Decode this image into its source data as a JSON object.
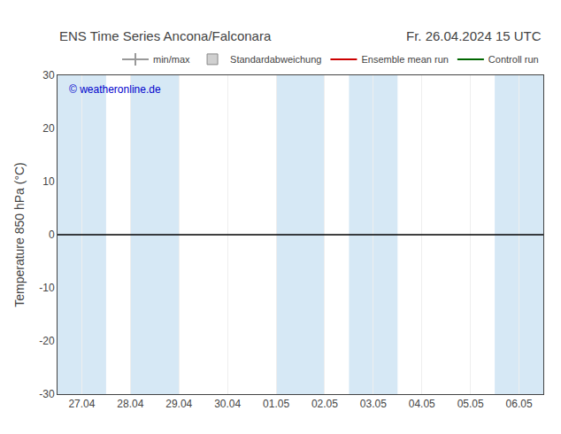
{
  "chart_data": {
    "type": "line",
    "title": "ENS Time Series Ancona/Falconara",
    "subtitle": "Fr. 26.04.2024 15 UTC",
    "y_label": "Temperature 850 hPa (°C)",
    "categories": [
      "27.04",
      "28.04",
      "29.04",
      "30.04",
      "01.05",
      "02.05",
      "03.05",
      "04.05",
      "05.05",
      "06.05"
    ],
    "xlim": [
      -0.5,
      9.5
    ],
    "ylim": [
      -30,
      30
    ],
    "yticks": [
      -30,
      -20,
      -10,
      0,
      10,
      20,
      30
    ],
    "grid": "x",
    "zero_line": 0,
    "shaded_bands": {
      "color": "#d6e8f5",
      "ranges": [
        [
          -0.5,
          0.5
        ],
        [
          1.0,
          2.0
        ],
        [
          4.0,
          5.0
        ],
        [
          5.5,
          6.5
        ],
        [
          8.5,
          9.5
        ]
      ]
    },
    "annotations": [
      {
        "text": "© weatheronline.de",
        "color": "#0000cc"
      }
    ],
    "legend": "upper right",
    "series": [
      {
        "name": "min/max",
        "type": "line",
        "marker": "vline",
        "color": "#999999",
        "values": [
          null,
          null,
          null,
          null,
          null,
          null,
          null,
          null,
          null,
          null
        ]
      },
      {
        "name": "Standardabweichung",
        "type": "bar",
        "color": "#d0d0d0",
        "values": [
          null,
          null,
          null,
          null,
          null,
          null,
          null,
          null,
          null,
          null
        ]
      },
      {
        "name": "Ensemble mean run",
        "type": "line",
        "color": "#cc0000",
        "values": [
          null,
          null,
          null,
          null,
          null,
          null,
          null,
          null,
          null,
          null
        ]
      },
      {
        "name": "Controll run",
        "type": "line",
        "color": "#006600",
        "values": [
          null,
          null,
          null,
          null,
          null,
          null,
          null,
          null,
          null,
          null
        ]
      }
    ]
  }
}
